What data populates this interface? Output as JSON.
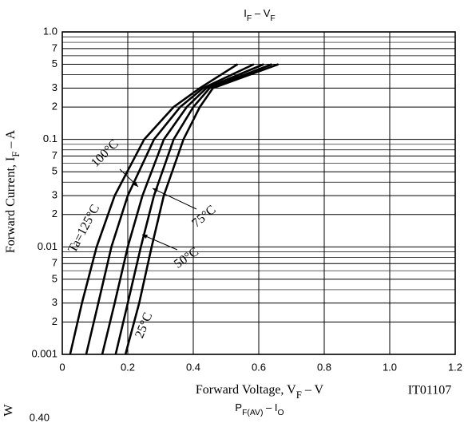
{
  "chart_data": {
    "type": "line",
    "title": [
      "I",
      "F",
      " – V",
      "F"
    ],
    "x_label": [
      "Forward Voltage, V",
      "F",
      " – V"
    ],
    "y_label": [
      "Forward Current, I",
      "F",
      " – A"
    ],
    "code": "IT01107",
    "log_y": true,
    "grid": true,
    "xlim": [
      0,
      1.2
    ],
    "xticks": [
      0,
      0.2,
      0.4,
      0.6,
      0.8,
      {
        "value": 1,
        "label": "1.0"
      },
      1.2
    ],
    "ylim": [
      0.001,
      1
    ],
    "yticks": [
      {
        "value": 1,
        "label": "1.0"
      },
      {
        "value": 0.7,
        "label": "7"
      },
      {
        "value": 0.5,
        "label": "5"
      },
      {
        "value": 0.3,
        "label": "3"
      },
      {
        "value": 0.2,
        "label": "2"
      },
      0.1,
      {
        "value": 0.07,
        "label": "7"
      },
      {
        "value": 0.05,
        "label": "5"
      },
      {
        "value": 0.03,
        "label": "3"
      },
      {
        "value": 0.02,
        "label": "2"
      },
      0.01,
      {
        "value": 0.007,
        "label": "7"
      },
      {
        "value": 0.005,
        "label": "5"
      },
      {
        "value": 0.003,
        "label": "3"
      },
      {
        "value": 0.002,
        "label": "2"
      },
      0.001
    ],
    "yminor": [
      0.9,
      0.8,
      0.6,
      0.4,
      0.09,
      0.08,
      0.06,
      0.04,
      0.009,
      0.008,
      0.006,
      0.004
    ],
    "series": [
      {
        "name": "Ta=125°C",
        "color": "#000000",
        "x": [
          0.024,
          0.06,
          0.105,
          0.16,
          0.25,
          0.34,
          0.42,
          0.535
        ],
        "values": [
          0.001,
          0.003,
          0.01,
          0.03,
          0.1,
          0.2,
          0.3,
          0.5
        ]
      },
      {
        "name": "100°C",
        "color": "#000000",
        "x": [
          0.073,
          0.11,
          0.15,
          0.2,
          0.28,
          0.36,
          0.43,
          0.585
        ],
        "values": [
          0.001,
          0.003,
          0.01,
          0.03,
          0.1,
          0.2,
          0.3,
          0.5
        ]
      },
      {
        "name": "75°C",
        "color": "#000000",
        "x": [
          0.122,
          0.16,
          0.2,
          0.245,
          0.31,
          0.38,
          0.44,
          0.615
        ],
        "values": [
          0.001,
          0.003,
          0.01,
          0.03,
          0.1,
          0.2,
          0.3,
          0.5
        ]
      },
      {
        "name": "50°C",
        "color": "#000000",
        "x": [
          0.163,
          0.2,
          0.24,
          0.28,
          0.34,
          0.4,
          0.45,
          0.64
        ],
        "values": [
          0.001,
          0.003,
          0.01,
          0.03,
          0.1,
          0.2,
          0.3,
          0.5
        ]
      },
      {
        "name": "25°C",
        "color": "#000000",
        "x": [
          0.193,
          0.235,
          0.273,
          0.31,
          0.37,
          0.42,
          0.46,
          0.66
        ],
        "values": [
          0.001,
          0.003,
          0.01,
          0.03,
          0.1,
          0.2,
          0.3,
          0.5
        ]
      }
    ]
  },
  "next_chart": {
    "title": [
      "P",
      "F(AV)",
      " – I",
      "O"
    ],
    "y_unit": "W",
    "first_tick": "0.40"
  }
}
